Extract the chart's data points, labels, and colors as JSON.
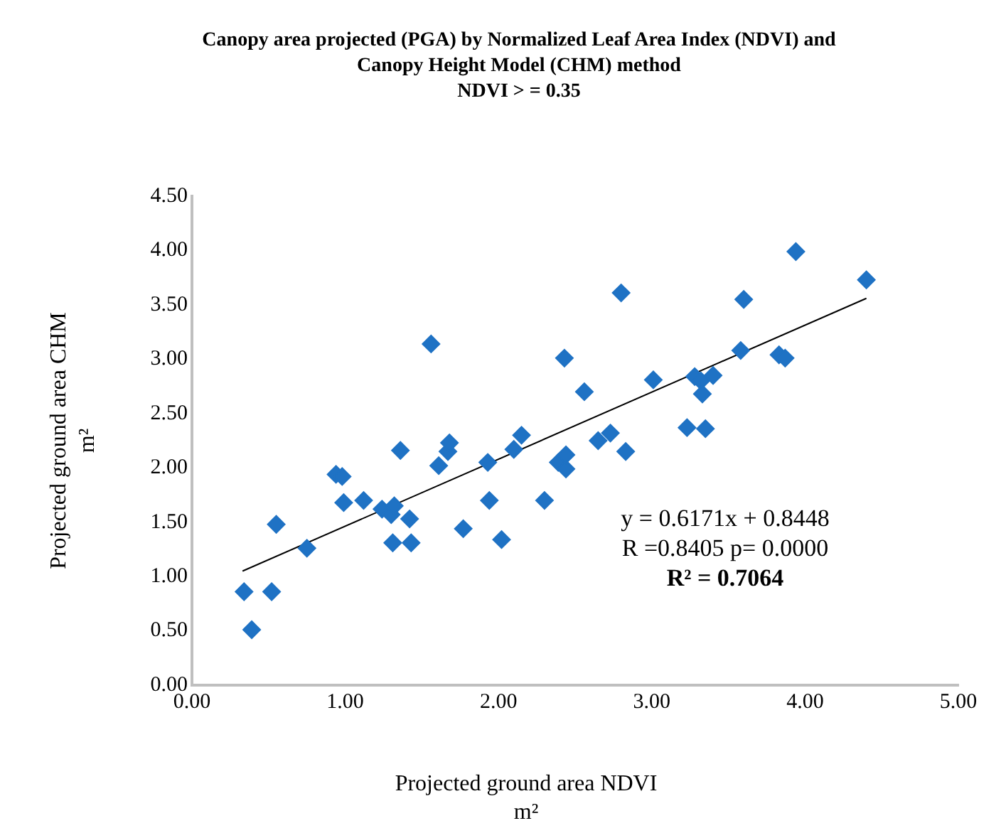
{
  "chart_data": {
    "type": "scatter",
    "title": "Canopy area projected (PGA) by Normalized Leaf Area Index (NDVI) and Canopy Height Model (CHM) method",
    "subtitle": "NDVI > = 0.35",
    "xlabel": "Projected ground area NDVI\nm²",
    "ylabel": "Projected  ground area CHM\nm²",
    "marker": "diamond",
    "grid": false,
    "legend": false,
    "xlim": [
      0,
      5
    ],
    "xticks": [
      {
        "value": 0,
        "label": "0.00"
      },
      {
        "value": 1,
        "label": "1.00"
      },
      {
        "value": 2,
        "label": "2.00"
      },
      {
        "value": 3,
        "label": "3.00"
      },
      {
        "value": 4,
        "label": "4.00"
      },
      {
        "value": 5,
        "label": "5.00"
      }
    ],
    "ylim": [
      0,
      4.5
    ],
    "yticks": [
      {
        "value": 0,
        "label": "0.00"
      },
      {
        "value": 0.5,
        "label": "0.50"
      },
      {
        "value": 1,
        "label": "1.00"
      },
      {
        "value": 1.5,
        "label": "1.50"
      },
      {
        "value": 2,
        "label": "2.00"
      },
      {
        "value": 2.5,
        "label": "2.50"
      },
      {
        "value": 3,
        "label": "3.00"
      },
      {
        "value": 3.5,
        "label": "3.50"
      },
      {
        "value": 4,
        "label": "4.00"
      },
      {
        "value": 4.5,
        "label": "4.50"
      }
    ],
    "series": [
      {
        "color": "#1f72c4",
        "x": [
          0.34,
          0.39,
          0.52,
          0.55,
          0.75,
          0.94,
          0.98,
          0.99,
          1.12,
          1.24,
          1.3,
          1.32,
          1.36,
          1.31,
          1.42,
          1.43,
          1.56,
          1.61,
          1.67,
          1.68,
          1.77,
          1.93,
          1.94,
          2.02,
          2.1,
          2.15,
          2.3,
          2.39,
          2.44,
          2.44,
          2.43,
          2.56,
          2.65,
          2.73,
          2.8,
          2.83,
          3.01,
          3.23,
          3.28,
          3.32,
          3.33,
          3.35,
          3.4,
          3.58,
          3.6,
          3.83,
          3.87,
          3.94,
          4.4
        ],
        "values": [
          0.86,
          0.51,
          0.86,
          1.48,
          1.26,
          1.94,
          1.92,
          1.68,
          1.7,
          1.62,
          1.57,
          1.65,
          2.16,
          1.31,
          1.53,
          1.31,
          3.14,
          2.02,
          2.15,
          2.23,
          1.44,
          2.05,
          1.7,
          1.34,
          2.17,
          2.3,
          1.7,
          2.05,
          1.99,
          2.12,
          3.01,
          2.7,
          2.25,
          2.32,
          3.61,
          2.15,
          2.81,
          2.37,
          2.84,
          2.8,
          2.68,
          2.36,
          2.85,
          3.08,
          3.55,
          3.04,
          3.01,
          3.99,
          3.73
        ]
      },
      {
        "type": "line",
        "color": "#000000",
        "marker": "none",
        "x": [
          0.33,
          4.4
        ],
        "values": [
          1.05,
          3.56
        ]
      }
    ],
    "annotations": [
      "y = 0.6171x + 0.8448",
      "R =0.8405 p= 0.0000",
      "R² = 0.7064"
    ]
  }
}
